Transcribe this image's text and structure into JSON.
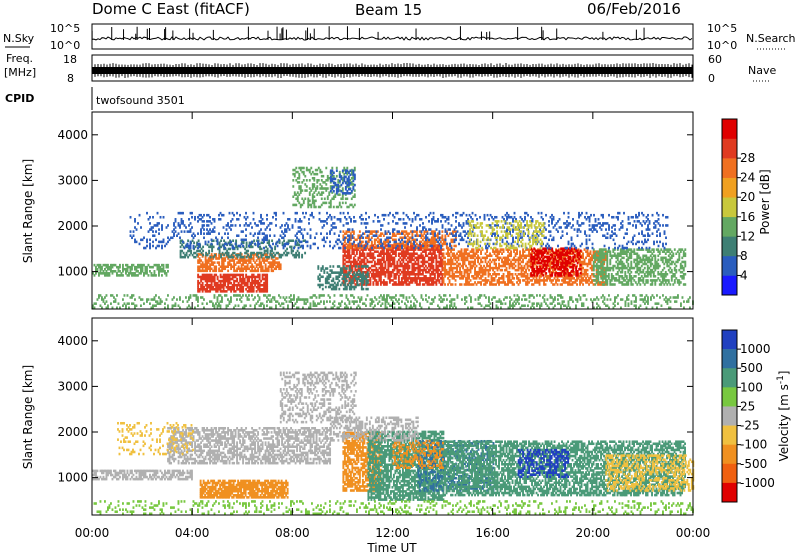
{
  "header": {
    "radar": "Dome C East (fitACF)",
    "beam": "Beam 15",
    "date": "06/Feb/2016"
  },
  "top_panels": {
    "nsky_label": "N.Sky",
    "nsky_max": "10^5",
    "nsky_min": "10^0",
    "nsearch_label": "N.Search",
    "nsearch_max": "10^5",
    "nsearch_min": "10^0",
    "freq_label_1": "Freq.",
    "freq_label_2": "[MHz]",
    "freq_max": "18",
    "freq_min": "8",
    "nave_label": "Nave",
    "nave_max": "60",
    "nave_min": "0",
    "cpid_label": "CPID",
    "cpid_value": "twofsound 3501"
  },
  "chart_data": [
    {
      "type": "heatmap",
      "title": "",
      "xlabel": "Time UT",
      "ylabel": "Slant Range [km]",
      "x_ticks": [
        "00:00",
        "04:00",
        "08:00",
        "12:00",
        "16:00",
        "20:00",
        "00:00"
      ],
      "y_ticks": [
        1000,
        2000,
        3000,
        4000
      ],
      "ylim": [
        180,
        4500
      ],
      "xlim_hours": [
        0,
        24
      ],
      "colorbar": {
        "label": "Power [dB]",
        "ticks": [
          "4",
          "8",
          "12",
          "16",
          "20",
          "24",
          "28"
        ],
        "colors": [
          "#1a1aff",
          "#2a5dbe",
          "#3e7f74",
          "#63a862",
          "#c8c83c",
          "#f0a020",
          "#f07020",
          "#e03a20",
          "#e00000"
        ]
      }
    },
    {
      "type": "heatmap",
      "title": "",
      "xlabel": "Time UT",
      "ylabel": "Slant Range [km]",
      "x_ticks": [
        "00:00",
        "04:00",
        "08:00",
        "12:00",
        "16:00",
        "20:00",
        "00:00"
      ],
      "y_ticks": [
        1000,
        2000,
        3000,
        4000
      ],
      "ylim": [
        180,
        4500
      ],
      "xlim_hours": [
        0,
        24
      ],
      "colorbar": {
        "label": "Velocity [m s^-1]",
        "ticks": [
          "1000",
          "500",
          "100",
          "25",
          "-25",
          "-100",
          "-500",
          "-1000"
        ],
        "colors": [
          "#2040c0",
          "#3070a0",
          "#4a9a78",
          "#78c840",
          "#b0b0b0",
          "#f0c040",
          "#f09020",
          "#f06010",
          "#e00000"
        ]
      }
    }
  ],
  "regions": {
    "power": [
      {
        "t0": 0.0,
        "t1": 3.0,
        "r0": 900,
        "r1": 1150,
        "c": "#63a862",
        "d": 0.6
      },
      {
        "t0": 4.2,
        "t1": 7.0,
        "r0": 550,
        "r1": 950,
        "c": "#e03a20",
        "d": 0.75
      },
      {
        "t0": 4.2,
        "t1": 7.5,
        "r0": 1000,
        "r1": 1400,
        "c": "#f07020",
        "d": 0.6
      },
      {
        "t0": 3.5,
        "t1": 8.5,
        "r0": 1300,
        "r1": 1700,
        "c": "#3e7f74",
        "d": 0.35
      },
      {
        "t0": 10.0,
        "t1": 14.0,
        "r0": 700,
        "r1": 1600,
        "c": "#e03a20",
        "d": 0.7
      },
      {
        "t0": 10.0,
        "t1": 14.5,
        "r0": 1500,
        "r1": 1900,
        "c": "#f07020",
        "d": 0.5
      },
      {
        "t0": 14.0,
        "t1": 20.5,
        "r0": 700,
        "r1": 1500,
        "c": "#f07020",
        "d": 0.55
      },
      {
        "t0": 17.5,
        "t1": 19.5,
        "r0": 900,
        "r1": 1500,
        "c": "#e00000",
        "d": 0.55
      },
      {
        "t0": 20.0,
        "t1": 23.7,
        "r0": 700,
        "r1": 1500,
        "c": "#63a862",
        "d": 0.5
      },
      {
        "t0": 1.5,
        "t1": 23.0,
        "r0": 1500,
        "r1": 2300,
        "c": "#2a5dbe",
        "d": 0.18
      },
      {
        "t0": 8.0,
        "t1": 10.5,
        "r0": 2400,
        "r1": 3300,
        "c": "#63a862",
        "d": 0.3
      },
      {
        "t0": 9.5,
        "t1": 10.5,
        "r0": 2700,
        "r1": 3200,
        "c": "#2a5dbe",
        "d": 0.4
      },
      {
        "t0": 0.0,
        "t1": 24.0,
        "r0": 190,
        "r1": 500,
        "c": "#63a862",
        "d": 0.25
      },
      {
        "t0": 9.0,
        "t1": 11.0,
        "r0": 600,
        "r1": 1100,
        "c": "#3e7f74",
        "d": 0.5
      },
      {
        "t0": 15.0,
        "t1": 18.0,
        "r0": 1500,
        "r1": 2100,
        "c": "#c8c83c",
        "d": 0.3
      }
    ],
    "velocity": [
      {
        "t0": 0.0,
        "t1": 4.0,
        "r0": 950,
        "r1": 1150,
        "c": "#b0b0b0",
        "d": 0.6
      },
      {
        "t0": 4.3,
        "t1": 7.8,
        "r0": 550,
        "r1": 950,
        "c": "#f09020",
        "d": 0.8
      },
      {
        "t0": 3.0,
        "t1": 9.5,
        "r0": 1300,
        "r1": 2100,
        "c": "#b0b0b0",
        "d": 0.55
      },
      {
        "t0": 7.5,
        "t1": 10.5,
        "r0": 2200,
        "r1": 3300,
        "c": "#b0b0b0",
        "d": 0.35
      },
      {
        "t0": 10.0,
        "t1": 11.5,
        "r0": 700,
        "r1": 2000,
        "c": "#f09020",
        "d": 0.7
      },
      {
        "t0": 11.0,
        "t1": 14.0,
        "r0": 500,
        "r1": 2000,
        "c": "#4a9a78",
        "d": 0.7
      },
      {
        "t0": 13.0,
        "t1": 16.0,
        "r0": 700,
        "r1": 1800,
        "c": "#3070a0",
        "d": 0.35
      },
      {
        "t0": 14.0,
        "t1": 23.7,
        "r0": 600,
        "r1": 1800,
        "c": "#4a9a78",
        "d": 0.6
      },
      {
        "t0": 17.0,
        "t1": 19.0,
        "r0": 1000,
        "r1": 1600,
        "c": "#2040c0",
        "d": 0.4
      },
      {
        "t0": 12.0,
        "t1": 14.0,
        "r0": 1200,
        "r1": 1800,
        "c": "#f09020",
        "d": 0.35
      },
      {
        "t0": 20.5,
        "t1": 24.0,
        "r0": 700,
        "r1": 1500,
        "c": "#f0c040",
        "d": 0.4
      },
      {
        "t0": 0.0,
        "t1": 24.0,
        "r0": 190,
        "r1": 500,
        "c": "#78c840",
        "d": 0.2
      },
      {
        "t0": 9.5,
        "t1": 13.0,
        "r0": 1800,
        "r1": 2300,
        "c": "#b0b0b0",
        "d": 0.4
      },
      {
        "t0": 1.0,
        "t1": 4.0,
        "r0": 1500,
        "r1": 2200,
        "c": "#f0c040",
        "d": 0.15
      }
    ]
  }
}
